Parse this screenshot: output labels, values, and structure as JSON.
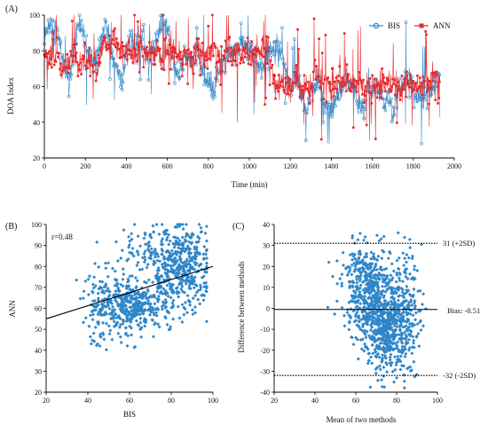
{
  "colors": {
    "bis": "#2e86c8",
    "ann": "#e8262a",
    "axis": "#000000",
    "scatter": "#2e86c8"
  },
  "chart_data": [
    {
      "id": "A",
      "type": "line",
      "panel_label": "(A)",
      "xlabel": "Time (min)",
      "ylabel": "DOA Index",
      "xlim": [
        0,
        2000
      ],
      "ylim": [
        20,
        100
      ],
      "xticks": [
        0,
        200,
        400,
        600,
        800,
        1000,
        1200,
        1400,
        1600,
        1800,
        2000
      ],
      "yticks": [
        20,
        40,
        60,
        80,
        100
      ],
      "legend_position": "top-right",
      "series": [
        {
          "name": "BIS",
          "marker": "circle",
          "sample_step_min": 20,
          "values": [
            85,
            96,
            94,
            92,
            80,
            72,
            60,
            78,
            92,
            96,
            86,
            76,
            70,
            78,
            88,
            96,
            82,
            74,
            66,
            62,
            80,
            90,
            82,
            84,
            88,
            82,
            80,
            82,
            90,
            96,
            92,
            80,
            70,
            66,
            74,
            76,
            78,
            80,
            74,
            66,
            60,
            56,
            64,
            70,
            72,
            80,
            78,
            80,
            84,
            82,
            80,
            78,
            72,
            70,
            74,
            82,
            80,
            82,
            78,
            70,
            60,
            66,
            64,
            52,
            46,
            60,
            58,
            62,
            54,
            48,
            44,
            52,
            56,
            60,
            62,
            64,
            54,
            48,
            44,
            60,
            56,
            62,
            58,
            50,
            56,
            42,
            58,
            60,
            62,
            64,
            56,
            54,
            60,
            56,
            58,
            62,
            64,
            62,
            58,
            60
          ]
        },
        {
          "name": "ANN",
          "marker": "square",
          "sample_step_min": 20,
          "values": [
            80,
            76,
            74,
            78,
            72,
            70,
            76,
            80,
            74,
            72,
            78,
            76,
            70,
            72,
            80,
            84,
            82,
            86,
            80,
            78,
            82,
            80,
            76,
            78,
            80,
            78,
            82,
            80,
            78,
            76,
            80,
            82,
            78,
            76,
            80,
            78,
            76,
            80,
            82,
            78,
            76,
            78,
            80,
            76,
            78,
            82,
            80,
            78,
            76,
            80,
            76,
            78,
            82,
            80,
            84,
            80,
            62,
            60,
            62,
            58,
            60,
            64,
            60,
            58,
            62,
            60,
            64,
            66,
            60,
            62,
            58,
            60,
            64,
            62,
            60,
            58,
            62,
            64,
            60,
            62,
            60,
            58,
            62,
            60,
            64,
            60,
            62,
            58,
            60,
            62,
            64,
            60,
            58,
            62,
            60,
            64,
            60,
            62,
            60,
            62
          ]
        }
      ]
    },
    {
      "id": "B",
      "type": "scatter",
      "panel_label": "(B)",
      "xlabel": "BIS",
      "ylabel": "ANN",
      "xlim": [
        20,
        100
      ],
      "ylim": [
        20,
        100
      ],
      "xticks": [
        20,
        40,
        60,
        80,
        100
      ],
      "yticks": [
        20,
        30,
        40,
        50,
        60,
        70,
        80,
        90,
        100
      ],
      "annotation": "r=0.48",
      "regression_line": {
        "x": [
          20,
          100
        ],
        "y": [
          55,
          80
        ]
      },
      "clusters": [
        {
          "cx": 62,
          "cy": 62,
          "sx": 9,
          "sy": 6,
          "n": 380
        },
        {
          "cx": 85,
          "cy": 78,
          "sx": 7,
          "sy": 10,
          "n": 420
        },
        {
          "cx": 48,
          "cy": 60,
          "sx": 6,
          "sy": 9,
          "n": 120
        },
        {
          "cx": 72,
          "cy": 90,
          "sx": 9,
          "sy": 6,
          "n": 90
        }
      ]
    },
    {
      "id": "C",
      "type": "scatter",
      "panel_label": "(C)",
      "xlabel": "Mean of two methods",
      "ylabel": "Difference between methods",
      "xlim": [
        20,
        100
      ],
      "ylim": [
        -40,
        40
      ],
      "xticks": [
        20,
        40,
        60,
        80,
        100
      ],
      "yticks": [
        -40,
        -30,
        -20,
        -10,
        0,
        10,
        20,
        30,
        40
      ],
      "reference_lines": [
        {
          "y": 31,
          "style": "dotted",
          "label": "31 (+2SD)"
        },
        {
          "y": -0.51,
          "style": "solid",
          "label": "Bias: -0.51"
        },
        {
          "y": -32,
          "style": "dotted",
          "label": "-32 (-2SD)"
        }
      ],
      "clusters": [
        {
          "cx": 65,
          "cy": 10,
          "sx": 6,
          "sy": 10,
          "n": 420
        },
        {
          "cx": 75,
          "cy": -10,
          "sx": 6,
          "sy": 10,
          "n": 500
        },
        {
          "cx": 82,
          "cy": 0,
          "sx": 5,
          "sy": 14,
          "n": 200
        }
      ]
    }
  ]
}
